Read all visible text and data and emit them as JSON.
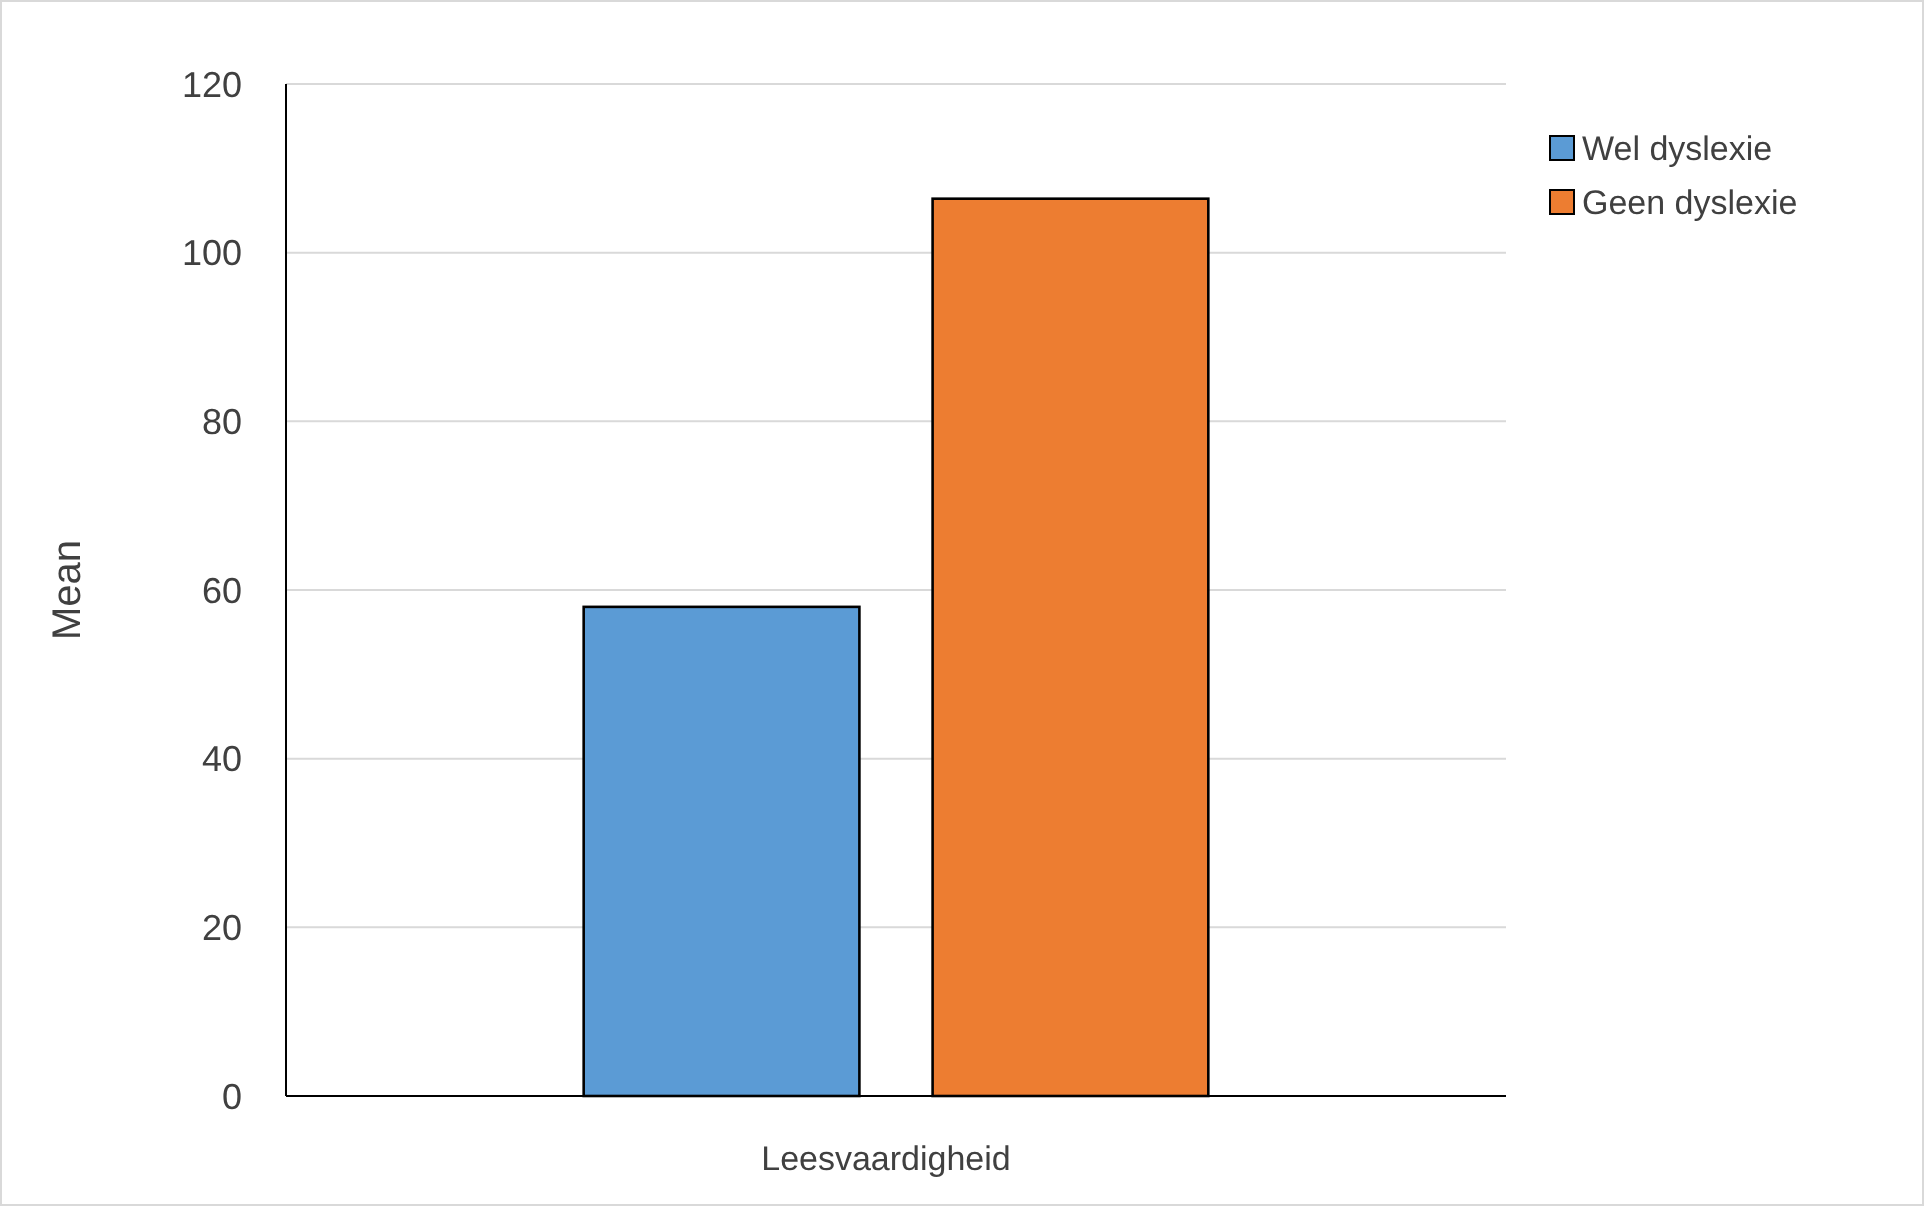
{
  "chart_data": {
    "type": "bar",
    "ylabel": "Mean",
    "categories": [
      "Leesvaardigheid"
    ],
    "series": [
      {
        "name": "Wel dyslexie",
        "color": "#5b9bd5",
        "values": [
          58
        ]
      },
      {
        "name": "Geen dyslexie",
        "color": "#ed7d31",
        "values": [
          106.4
        ]
      }
    ],
    "ylim": [
      0,
      120
    ],
    "yticks": [
      0,
      20,
      40,
      60,
      80,
      100,
      120
    ],
    "grid": "y",
    "legend": "top right"
  }
}
